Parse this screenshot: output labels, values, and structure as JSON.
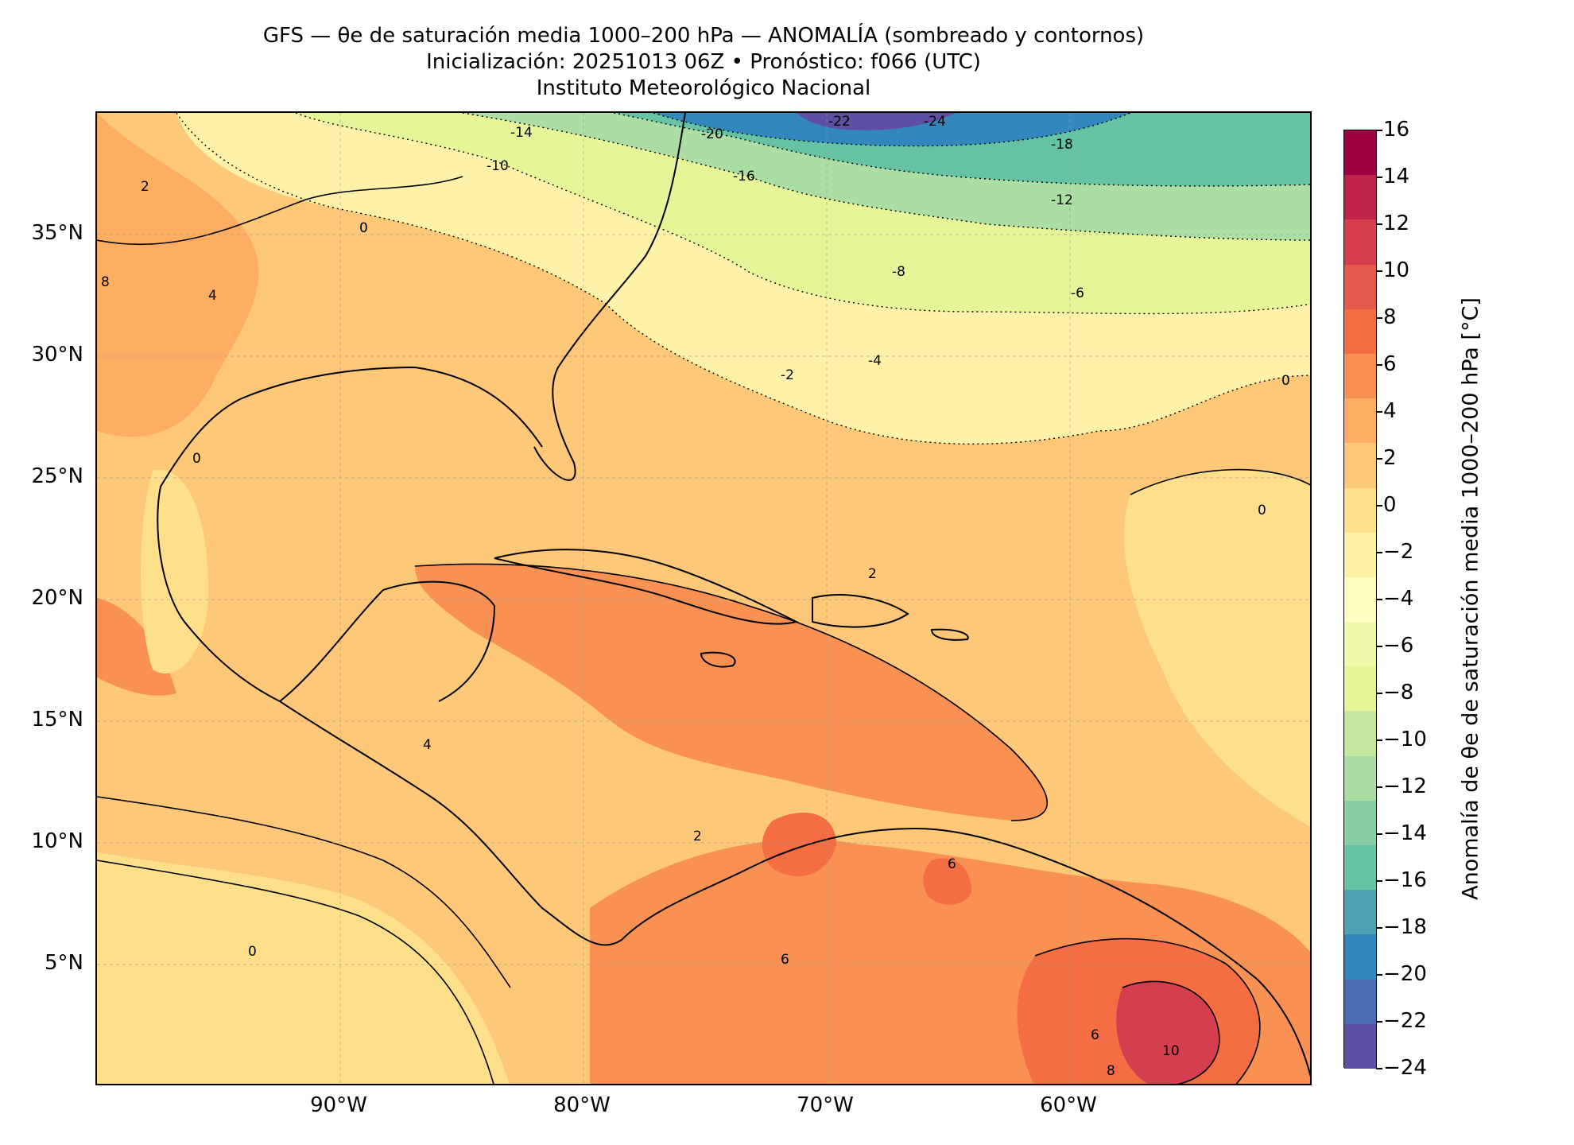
{
  "title": {
    "line1": "GFS — θe de saturación media 1000–200 hPa — ANOMALÍA (sombreado y contornos)",
    "line2": "Inicialización: 20251013 06Z   •   Pronóstico: f066 (UTC)",
    "line3": "Instituto Meteorológico Nacional"
  },
  "axes": {
    "lat_labels": [
      "35°N",
      "30°N",
      "25°N",
      "20°N",
      "15°N",
      "10°N",
      "5°N"
    ],
    "lon_labels": [
      "90°W",
      "80°W",
      "70°W",
      "60°W"
    ],
    "lat_range": [
      0,
      40
    ],
    "lon_range": [
      -99.5,
      -49.5
    ]
  },
  "colorbar": {
    "label": "Anomalía de θe de saturación media 1000–200 hPa [°C]",
    "ticks": [
      "16",
      "14",
      "12",
      "10",
      "8",
      "6",
      "4",
      "2",
      "0",
      "−2",
      "−4",
      "−6",
      "−8",
      "−10",
      "−12",
      "−14",
      "−16",
      "−18",
      "−20",
      "−22",
      "−24"
    ],
    "colors_top_to_bottom": [
      "#9e0142",
      "#be2449",
      "#d53e4f",
      "#e55a4a",
      "#f46d43",
      "#f99153",
      "#fdae61",
      "#fdc877",
      "#fee08b",
      "#fef2a8",
      "#ffffbf",
      "#f2f9ac",
      "#e6f598",
      "#c4e89f",
      "#abdda4",
      "#88cfa4",
      "#66c2a5",
      "#4ea1b1",
      "#3288bd",
      "#4a6cb3",
      "#5e4fa2"
    ]
  },
  "contour_labels": [
    "-24",
    "-22",
    "-20",
    "-18",
    "-16",
    "-14",
    "-12",
    "-10",
    "-8",
    "-6",
    "-4",
    "-2",
    "0",
    "2",
    "4",
    "6",
    "8",
    "10"
  ],
  "map_regions": [
    {
      "name": "northeast-cold",
      "level": -22
    },
    {
      "name": "atlantic-cool",
      "level": -6
    },
    {
      "name": "gulf-warm",
      "level": 2
    },
    {
      "name": "caribbean-warm",
      "level": 4
    },
    {
      "name": "south-america-hot",
      "level": 10
    }
  ]
}
